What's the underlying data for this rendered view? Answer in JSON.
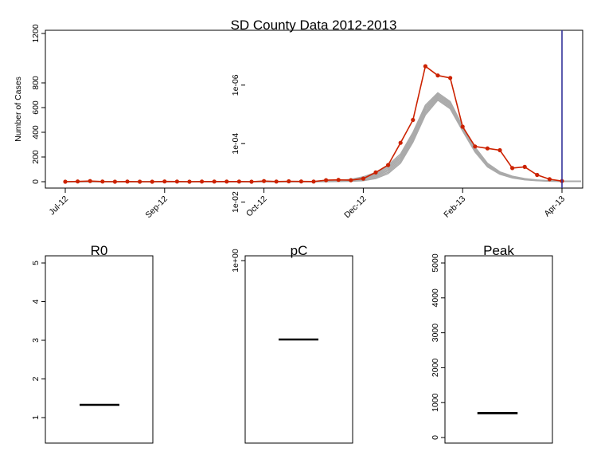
{
  "chart_data": [
    {
      "type": "line",
      "title": "SD County Data 2012-2013",
      "xlabel": "",
      "ylabel": "Number of Cases",
      "y_ticks": [
        "0",
        "200",
        "400",
        "600",
        "800",
        "1200"
      ],
      "x_ticks": [
        "Jul-12",
        "Sep-12",
        "Oct-12",
        "Dec-12",
        "Feb-13",
        "Apr-13"
      ],
      "ylim": [
        0,
        1250
      ],
      "grid": false,
      "colors": {
        "observed": "#cc2200",
        "simulated": "#aaaaaa",
        "cutoff_line": "#333399"
      },
      "observed_y": [
        0,
        2,
        5,
        1,
        0,
        1,
        0,
        0,
        2,
        1,
        0,
        1,
        1,
        1,
        1,
        0,
        5,
        1,
        3,
        2,
        1,
        12,
        15,
        12,
        25,
        75,
        135,
        315,
        500,
        935,
        860,
        840,
        445,
        285,
        270,
        255,
        110,
        120,
        55,
        20,
        5
      ],
      "simulated_band": {
        "lower": [
          0,
          0,
          0,
          0,
          0,
          0,
          0,
          0,
          0,
          0,
          0,
          0,
          0,
          0,
          0,
          0,
          0,
          0,
          0,
          0,
          0,
          0,
          1,
          3,
          8,
          25,
          65,
          150,
          320,
          540,
          660,
          590,
          410,
          240,
          120,
          60,
          30,
          15,
          8,
          4,
          2
        ],
        "upper": [
          1,
          1,
          1,
          1,
          1,
          1,
          1,
          1,
          1,
          1,
          1,
          1,
          1,
          1,
          1,
          1,
          1,
          1,
          1,
          1,
          2,
          5,
          10,
          20,
          40,
          75,
          135,
          225,
          400,
          620,
          720,
          650,
          450,
          280,
          150,
          80,
          45,
          25,
          14,
          8,
          5
        ]
      },
      "cutoff_index": 40
    },
    {
      "type": "boxplot",
      "title": "R0",
      "y_ticks": [
        "1",
        "2",
        "3",
        "4",
        "5"
      ],
      "ylim": [
        0.3,
        5.2
      ],
      "median": 1.33
    },
    {
      "type": "boxplot",
      "title": "pC",
      "scale": "log",
      "y_ticks": [
        "1e-06",
        "1e-04",
        "1e-02",
        "1e+00"
      ],
      "ylim": [
        1e-06,
        1
      ],
      "median": 0.001
    },
    {
      "type": "boxplot",
      "title": "Peak",
      "y_ticks": [
        "0",
        "1000",
        "2000",
        "3000",
        "4000",
        "5000"
      ],
      "ylim": [
        -100,
        5200
      ],
      "median": 700,
      "q1": 680,
      "q3": 720
    }
  ]
}
